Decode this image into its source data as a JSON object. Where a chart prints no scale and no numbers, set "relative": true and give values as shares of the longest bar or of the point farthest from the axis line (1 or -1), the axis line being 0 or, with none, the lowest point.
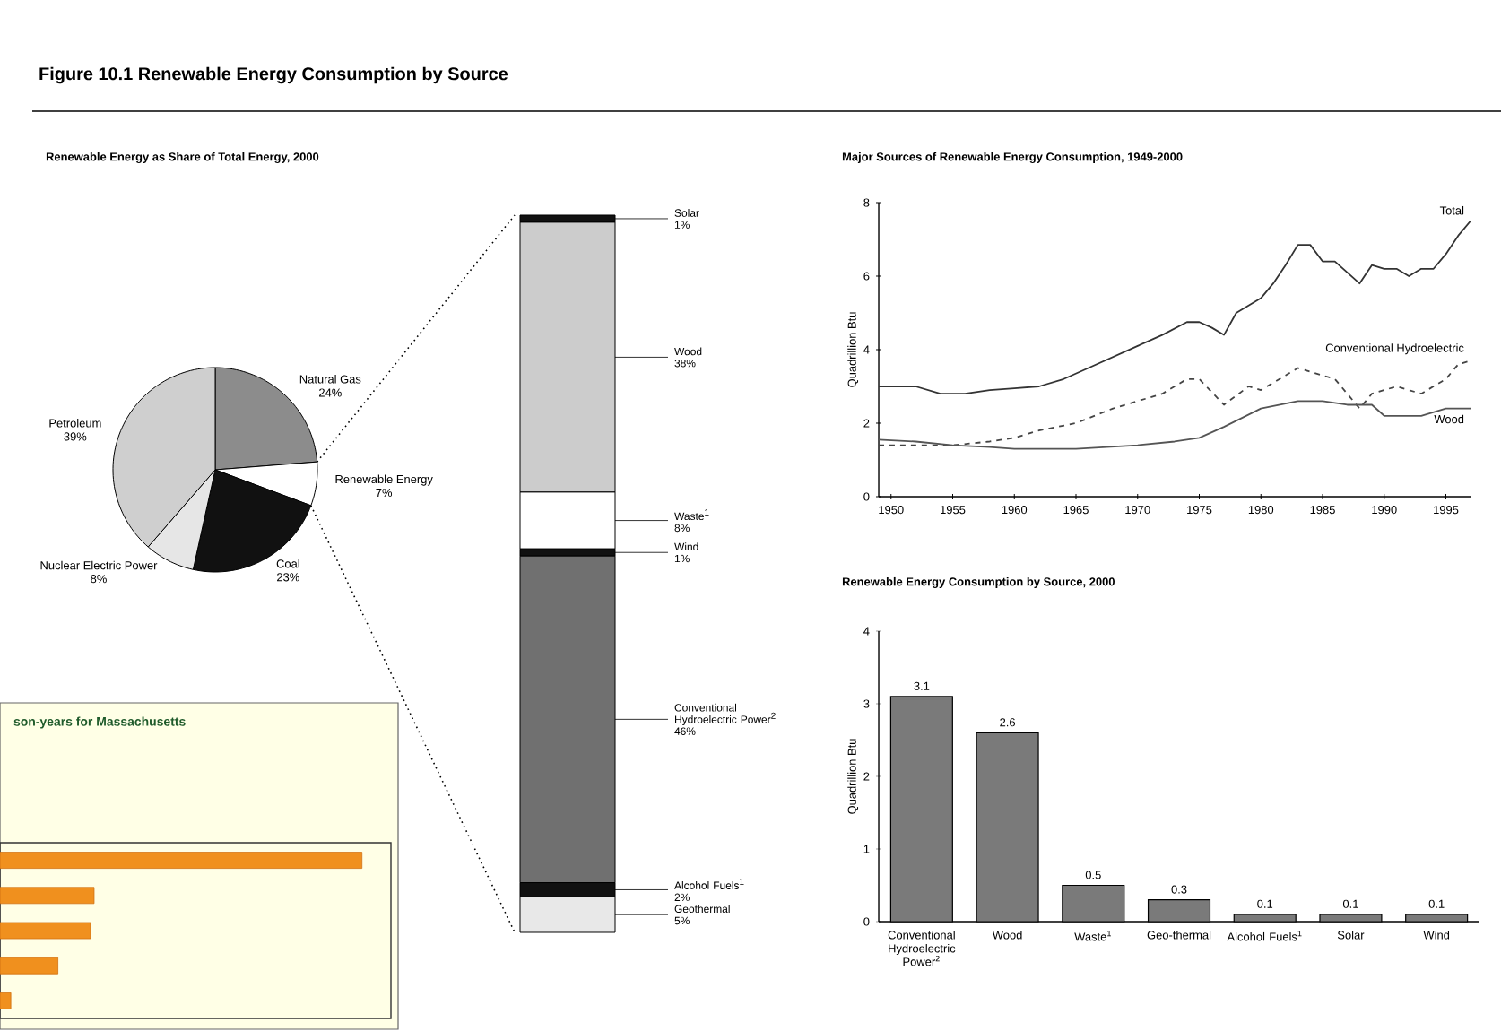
{
  "chart_data": [
    {
      "type": "pie",
      "title": "Figure 10.1  Renewable Energy Consumption by Source",
      "subtitle": "Renewable Energy as Share of Total Energy, 2000",
      "categories": [
        "Natural Gas",
        "Renewable Energy",
        "Coal",
        "Nuclear Electric Power",
        "Petroleum"
      ],
      "values": [
        24,
        7,
        23,
        8,
        39
      ],
      "value_labels": [
        "24%",
        "7%",
        "23%",
        "8%",
        "39%"
      ],
      "colors": [
        "#8c8c8c",
        "#ffffff",
        "#111111",
        "#e6e6e6",
        "#cfcfcf"
      ]
    },
    {
      "type": "bar",
      "stacked": true,
      "categories": [
        null
      ],
      "series": [
        {
          "name": "Geothermal",
          "color": "#e8e8e8",
          "values": [
            5
          ],
          "value_labels": [
            "5%"
          ]
        },
        {
          "name": "Alcohol Fuels$^{1}$",
          "color": "#111111",
          "values": [
            2
          ],
          "value_labels": [
            "2%"
          ]
        },
        {
          "name": "Conventional Hydroelectric Power$^{2}$",
          "color": "#707070",
          "values": [
            46
          ],
          "value_labels": [
            "46%"
          ]
        },
        {
          "name": "Wind",
          "color": "#111111",
          "values": [
            1
          ],
          "value_labels": [
            "1%"
          ]
        },
        {
          "name": "Waste$^{1}$",
          "color": "#ffffff",
          "values": [
            8
          ],
          "value_labels": [
            "8%"
          ]
        },
        {
          "name": "Wood",
          "color": "#cccccc",
          "values": [
            38
          ],
          "value_labels": [
            "38%"
          ]
        },
        {
          "name": "Solar",
          "color": "#111111",
          "values": [
            1
          ],
          "value_labels": [
            "1%"
          ]
        }
      ]
    },
    {
      "type": "line",
      "title": "Major Sources of Renewable Energy Consumption, 1949-2000",
      "ylabel": "Quadrillion Btu",
      "xlim": [
        1949,
        1997
      ],
      "ylim": [
        0,
        8
      ],
      "xticks": [
        1950,
        1955,
        1960,
        1965,
        1970,
        1975,
        1980,
        1985,
        1990,
        1995
      ],
      "yticks": [
        0,
        2,
        4,
        6,
        8
      ],
      "line_style": "solid",
      "series": [
        {
          "name": "Total",
          "color": "#333333",
          "x": [
            1949,
            1950,
            1952,
            1954,
            1956,
            1958,
            1960,
            1962,
            1964,
            1966,
            1968,
            1970,
            1972,
            1974,
            1975,
            1976,
            1977,
            1978,
            1979,
            1980,
            1981,
            1982,
            1983,
            1984,
            1985,
            1986,
            1987,
            1988,
            1989,
            1990,
            1991,
            1992,
            1993,
            1994,
            1995,
            1996,
            1997
          ],
          "values": [
            3.0,
            3.0,
            3.0,
            2.8,
            2.8,
            2.9,
            2.95,
            3.0,
            3.2,
            3.5,
            3.8,
            4.1,
            4.4,
            4.75,
            4.75,
            4.6,
            4.4,
            5.0,
            5.2,
            5.4,
            5.8,
            6.3,
            6.85,
            6.85,
            6.4,
            6.4,
            6.1,
            5.8,
            6.3,
            6.2,
            6.2,
            6.0,
            6.2,
            6.2,
            6.6,
            7.1,
            7.5
          ]
        },
        {
          "name": "Conventional Hydroelectric",
          "color": "#444444",
          "line_style": "dashed",
          "x": [
            1949,
            1952,
            1955,
            1958,
            1960,
            1962,
            1965,
            1968,
            1970,
            1972,
            1974,
            1975,
            1977,
            1979,
            1980,
            1982,
            1983,
            1984,
            1986,
            1988,
            1989,
            1991,
            1993,
            1995,
            1996,
            1997
          ],
          "values": [
            1.4,
            1.4,
            1.4,
            1.5,
            1.6,
            1.8,
            2.0,
            2.4,
            2.6,
            2.8,
            3.2,
            3.2,
            2.5,
            3.0,
            2.9,
            3.3,
            3.5,
            3.4,
            3.2,
            2.4,
            2.8,
            3.0,
            2.8,
            3.2,
            3.6,
            3.7
          ]
        },
        {
          "name": "Wood",
          "color": "#555555",
          "x": [
            1949,
            1952,
            1955,
            1958,
            1960,
            1965,
            1970,
            1973,
            1975,
            1977,
            1980,
            1983,
            1985,
            1987,
            1989,
            1990,
            1993,
            1995,
            1997
          ],
          "values": [
            1.55,
            1.5,
            1.4,
            1.35,
            1.3,
            1.3,
            1.4,
            1.5,
            1.6,
            1.9,
            2.4,
            2.6,
            2.6,
            2.5,
            2.5,
            2.2,
            2.2,
            2.4,
            2.4
          ]
        }
      ]
    },
    {
      "type": "bar",
      "title": "Renewable Energy Consumption by Source, 2000",
      "ylabel": "Quadrillion Btu",
      "categories": [
        "Conventional Hydroelectric Power$^{2}$",
        "Wood",
        "Waste$^{1}$",
        "Geo-thermal",
        "Alcohol Fuels$^{1}$",
        "Solar",
        "Wind"
      ],
      "values": [
        3.1,
        2.6,
        0.5,
        0.3,
        0.1,
        0.1,
        0.1
      ],
      "color": "#7a7a7a",
      "ylim": [
        0,
        4
      ],
      "yticks": [
        0,
        1,
        2,
        3,
        4
      ],
      "data_labels": true
    },
    {
      "type": "bar",
      "orientation": "horizontal",
      "relative": true,
      "title": "son-years for Massachusetts",
      "categories": [
        null,
        null,
        null,
        null,
        null
      ],
      "values": [
        1,
        0.26,
        0.25,
        0.16,
        0.03
      ],
      "color": "#f0901e"
    }
  ]
}
